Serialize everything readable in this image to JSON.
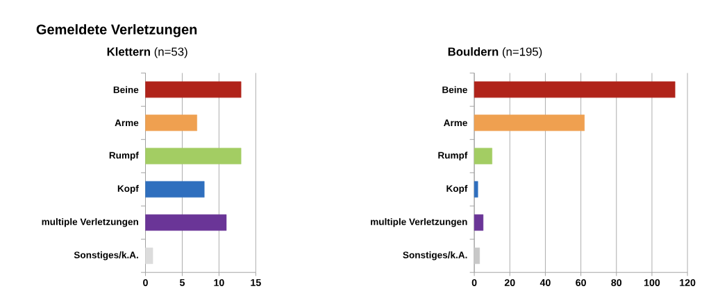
{
  "chart_data": [
    {
      "type": "bar",
      "orientation": "horizontal",
      "title": "Gemeldete Verletzungen",
      "subtitle": "**Klettern** (n=53)",
      "categories": [
        "Beine",
        "Arme",
        "Rumpf",
        "Kopf",
        "multiple Verletzungen",
        "Sonstiges/k.A."
      ],
      "values": [
        13,
        7,
        13,
        8,
        11,
        1
      ],
      "colors": [
        "#b0231a",
        "#efa050",
        "#a3cd63",
        "#2f6fbe",
        "#6a3597",
        "#dcdcdc"
      ],
      "xlim": [
        0,
        15
      ],
      "xticks": [
        0,
        5,
        10,
        15
      ],
      "grid": "x"
    },
    {
      "type": "bar",
      "orientation": "horizontal",
      "title": "**Bouldern** (n=195)",
      "categories": [
        "Beine",
        "Arme",
        "Rumpf",
        "Kopf",
        "multiple Verletzungen",
        "Sonstiges/k.A."
      ],
      "values": [
        113,
        62,
        10,
        2,
        5,
        3
      ],
      "colors": [
        "#b0231a",
        "#efa050",
        "#a3cd63",
        "#2f6fbe",
        "#6a3597",
        "#c8c8c8"
      ],
      "xlim": [
        0,
        120
      ],
      "xticks": [
        0,
        20,
        40,
        60,
        80,
        100,
        120
      ],
      "grid": "x"
    }
  ]
}
